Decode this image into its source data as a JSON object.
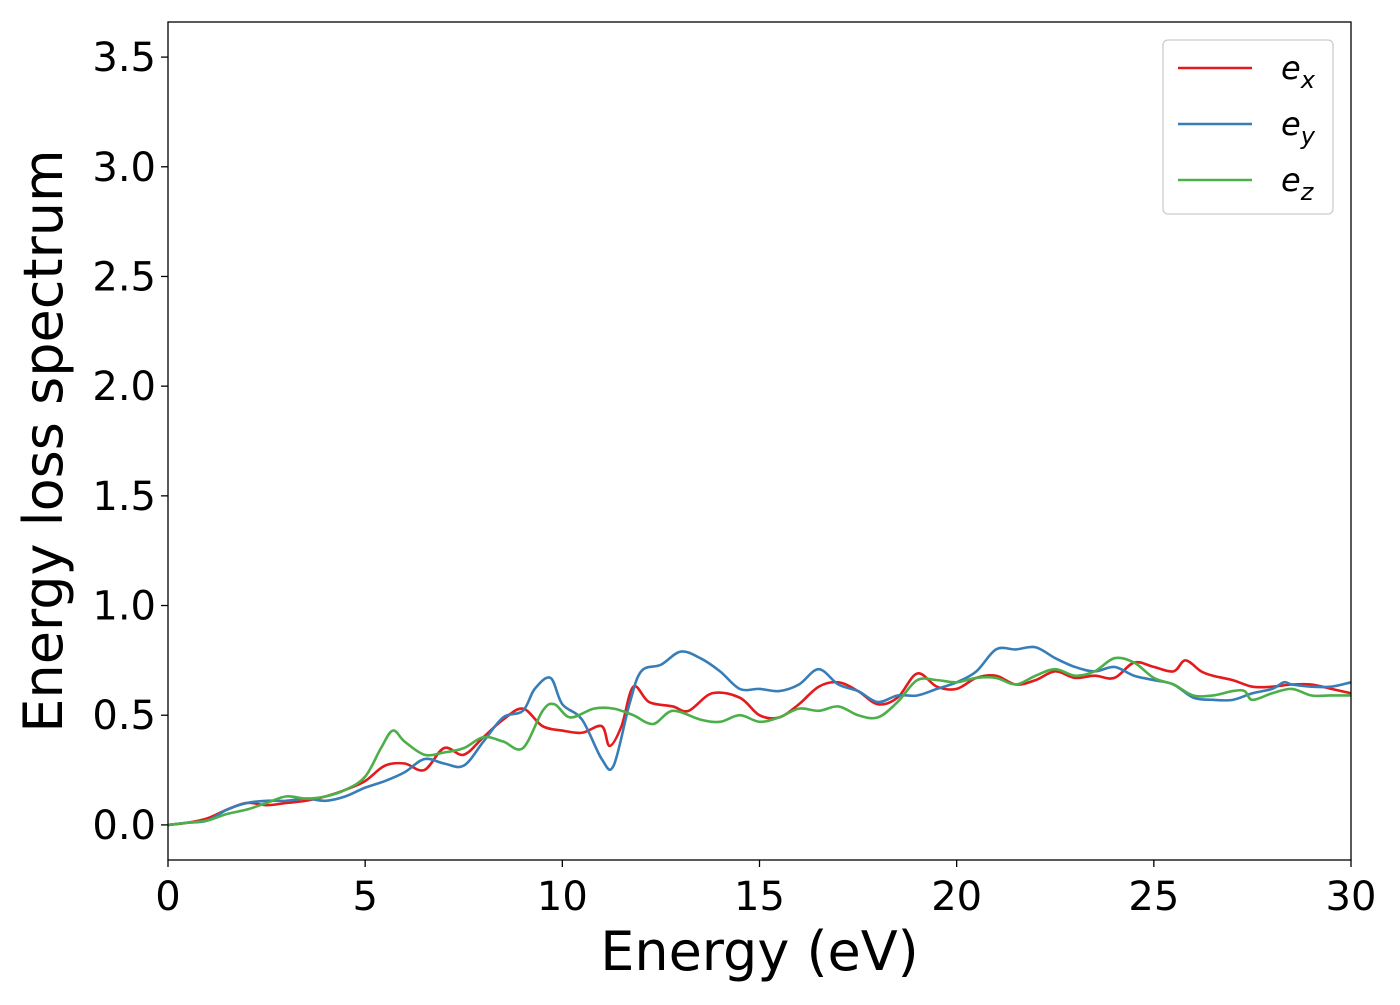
{
  "chart_data": {
    "type": "line",
    "xlabel": "Energy (eV)",
    "ylabel": "Energy loss spectrum",
    "xlim": [
      0,
      30
    ],
    "ylim": [
      -0.16,
      3.66
    ],
    "xticks": [
      0,
      5,
      10,
      15,
      20,
      25,
      30
    ],
    "xtick_labels": [
      "0",
      "5",
      "10",
      "15",
      "20",
      "25",
      "30"
    ],
    "yticks": [
      0.0,
      0.5,
      1.0,
      1.5,
      2.0,
      2.5,
      3.0,
      3.5
    ],
    "ytick_labels": [
      "0.0",
      "0.5",
      "1.0",
      "1.5",
      "2.0",
      "2.5",
      "3.0",
      "3.5"
    ],
    "grid": false,
    "legend_position": "top-right",
    "series": [
      {
        "name": "e",
        "subscript": "x",
        "color": "#e41a1c",
        "points": [
          [
            0,
            0.0
          ],
          [
            0.5,
            0.01
          ],
          [
            1,
            0.03
          ],
          [
            1.5,
            0.07
          ],
          [
            2,
            0.1
          ],
          [
            2.5,
            0.09
          ],
          [
            3,
            0.1
          ],
          [
            3.5,
            0.11
          ],
          [
            4,
            0.13
          ],
          [
            4.5,
            0.16
          ],
          [
            5,
            0.2
          ],
          [
            5.5,
            0.27
          ],
          [
            6,
            0.28
          ],
          [
            6.5,
            0.25
          ],
          [
            7,
            0.35
          ],
          [
            7.5,
            0.32
          ],
          [
            8,
            0.4
          ],
          [
            8.5,
            0.48
          ],
          [
            9,
            0.53
          ],
          [
            9.5,
            0.45
          ],
          [
            10,
            0.43
          ],
          [
            10.5,
            0.42
          ],
          [
            11,
            0.45
          ],
          [
            11.2,
            0.36
          ],
          [
            11.5,
            0.45
          ],
          [
            11.8,
            0.63
          ],
          [
            12.2,
            0.56
          ],
          [
            12.8,
            0.54
          ],
          [
            13.2,
            0.52
          ],
          [
            13.8,
            0.6
          ],
          [
            14.5,
            0.58
          ],
          [
            15,
            0.5
          ],
          [
            15.5,
            0.49
          ],
          [
            16,
            0.55
          ],
          [
            16.5,
            0.63
          ],
          [
            17,
            0.65
          ],
          [
            17.5,
            0.61
          ],
          [
            18,
            0.55
          ],
          [
            18.5,
            0.58
          ],
          [
            19,
            0.69
          ],
          [
            19.5,
            0.63
          ],
          [
            20,
            0.62
          ],
          [
            20.5,
            0.67
          ],
          [
            21,
            0.68
          ],
          [
            21.5,
            0.64
          ],
          [
            22,
            0.66
          ],
          [
            22.5,
            0.7
          ],
          [
            23,
            0.67
          ],
          [
            23.5,
            0.68
          ],
          [
            24,
            0.67
          ],
          [
            24.5,
            0.74
          ],
          [
            25,
            0.72
          ],
          [
            25.5,
            0.7
          ],
          [
            25.8,
            0.75
          ],
          [
            26.2,
            0.7
          ],
          [
            26.5,
            0.68
          ],
          [
            27,
            0.66
          ],
          [
            27.5,
            0.63
          ],
          [
            28,
            0.63
          ],
          [
            28.5,
            0.64
          ],
          [
            29,
            0.64
          ],
          [
            29.5,
            0.62
          ],
          [
            30,
            0.6
          ]
        ]
      },
      {
        "name": "e",
        "subscript": "y",
        "color": "#377eb8",
        "points": [
          [
            0,
            0.0
          ],
          [
            0.5,
            0.01
          ],
          [
            1,
            0.02
          ],
          [
            1.5,
            0.07
          ],
          [
            2,
            0.1
          ],
          [
            2.5,
            0.11
          ],
          [
            3,
            0.11
          ],
          [
            3.5,
            0.12
          ],
          [
            4,
            0.11
          ],
          [
            4.5,
            0.13
          ],
          [
            5,
            0.17
          ],
          [
            5.5,
            0.2
          ],
          [
            6,
            0.24
          ],
          [
            6.5,
            0.3
          ],
          [
            7,
            0.28
          ],
          [
            7.5,
            0.27
          ],
          [
            8,
            0.38
          ],
          [
            8.5,
            0.49
          ],
          [
            9,
            0.52
          ],
          [
            9.3,
            0.62
          ],
          [
            9.7,
            0.67
          ],
          [
            10,
            0.55
          ],
          [
            10.5,
            0.48
          ],
          [
            11,
            0.3
          ],
          [
            11.3,
            0.27
          ],
          [
            11.7,
            0.55
          ],
          [
            12,
            0.7
          ],
          [
            12.5,
            0.73
          ],
          [
            13,
            0.79
          ],
          [
            13.5,
            0.76
          ],
          [
            14,
            0.7
          ],
          [
            14.5,
            0.62
          ],
          [
            15,
            0.62
          ],
          [
            15.5,
            0.61
          ],
          [
            16,
            0.64
          ],
          [
            16.5,
            0.71
          ],
          [
            17,
            0.64
          ],
          [
            17.5,
            0.61
          ],
          [
            18,
            0.56
          ],
          [
            18.5,
            0.59
          ],
          [
            19,
            0.59
          ],
          [
            19.5,
            0.62
          ],
          [
            20,
            0.65
          ],
          [
            20.5,
            0.7
          ],
          [
            21,
            0.8
          ],
          [
            21.5,
            0.8
          ],
          [
            22,
            0.81
          ],
          [
            22.5,
            0.76
          ],
          [
            23,
            0.72
          ],
          [
            23.5,
            0.7
          ],
          [
            24,
            0.72
          ],
          [
            24.5,
            0.68
          ],
          [
            25,
            0.66
          ],
          [
            25.5,
            0.64
          ],
          [
            26,
            0.58
          ],
          [
            26.5,
            0.57
          ],
          [
            27,
            0.57
          ],
          [
            27.5,
            0.6
          ],
          [
            28,
            0.62
          ],
          [
            28.3,
            0.65
          ],
          [
            28.5,
            0.64
          ],
          [
            29,
            0.63
          ],
          [
            29.5,
            0.63
          ],
          [
            30,
            0.65
          ]
        ]
      },
      {
        "name": "e",
        "subscript": "z",
        "color": "#4daf4a",
        "points": [
          [
            0,
            0.0
          ],
          [
            0.5,
            0.01
          ],
          [
            1,
            0.02
          ],
          [
            1.5,
            0.05
          ],
          [
            2,
            0.07
          ],
          [
            2.5,
            0.1
          ],
          [
            3,
            0.13
          ],
          [
            3.5,
            0.12
          ],
          [
            4,
            0.13
          ],
          [
            4.5,
            0.16
          ],
          [
            5,
            0.22
          ],
          [
            5.4,
            0.35
          ],
          [
            5.7,
            0.43
          ],
          [
            6,
            0.38
          ],
          [
            6.5,
            0.32
          ],
          [
            7,
            0.33
          ],
          [
            7.5,
            0.35
          ],
          [
            8,
            0.4
          ],
          [
            8.5,
            0.38
          ],
          [
            9,
            0.35
          ],
          [
            9.5,
            0.52
          ],
          [
            9.8,
            0.55
          ],
          [
            10.2,
            0.49
          ],
          [
            10.8,
            0.53
          ],
          [
            11.3,
            0.53
          ],
          [
            11.8,
            0.5
          ],
          [
            12.3,
            0.46
          ],
          [
            12.8,
            0.52
          ],
          [
            13.5,
            0.48
          ],
          [
            14,
            0.47
          ],
          [
            14.5,
            0.5
          ],
          [
            15,
            0.47
          ],
          [
            15.5,
            0.49
          ],
          [
            16,
            0.53
          ],
          [
            16.5,
            0.52
          ],
          [
            17,
            0.54
          ],
          [
            17.5,
            0.5
          ],
          [
            18,
            0.49
          ],
          [
            18.5,
            0.56
          ],
          [
            19,
            0.66
          ],
          [
            19.5,
            0.66
          ],
          [
            20,
            0.65
          ],
          [
            20.5,
            0.67
          ],
          [
            21,
            0.67
          ],
          [
            21.5,
            0.64
          ],
          [
            22,
            0.68
          ],
          [
            22.5,
            0.71
          ],
          [
            23,
            0.68
          ],
          [
            23.5,
            0.7
          ],
          [
            24,
            0.76
          ],
          [
            24.5,
            0.74
          ],
          [
            25,
            0.67
          ],
          [
            25.5,
            0.64
          ],
          [
            26,
            0.59
          ],
          [
            26.5,
            0.59
          ],
          [
            27,
            0.61
          ],
          [
            27.3,
            0.61
          ],
          [
            27.5,
            0.57
          ],
          [
            28,
            0.6
          ],
          [
            28.5,
            0.62
          ],
          [
            29,
            0.59
          ],
          [
            29.5,
            0.59
          ],
          [
            30,
            0.59
          ]
        ]
      }
    ]
  }
}
